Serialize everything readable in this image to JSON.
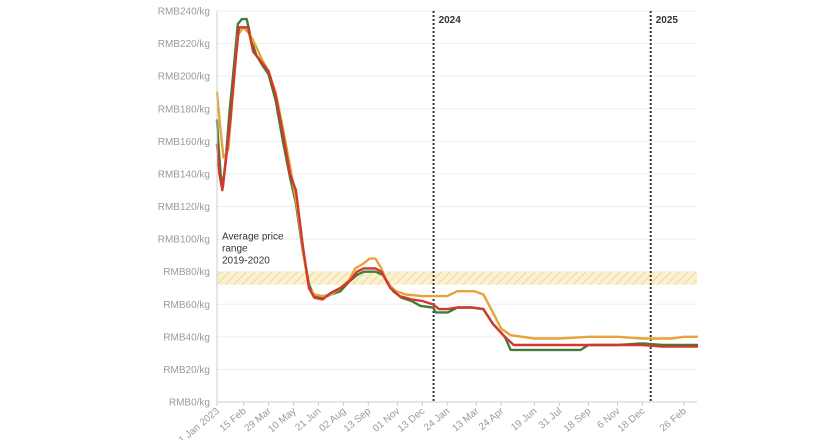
{
  "chart_data": {
    "type": "line",
    "title": "",
    "xlabel": "",
    "ylabel": "",
    "ylim": [
      0,
      240
    ],
    "grid": true,
    "y_ticks": [
      0,
      20,
      40,
      60,
      80,
      100,
      120,
      140,
      160,
      180,
      200,
      220,
      240
    ],
    "y_tick_prefix": "RMB",
    "y_tick_suffix": "/kg",
    "x_range": [
      "2023-01-01",
      "2025-03-20"
    ],
    "x_ticks": [
      {
        "date": "2023-01-01",
        "label": "1 Jan 2023"
      },
      {
        "date": "2023-02-15",
        "label": "15 Feb"
      },
      {
        "date": "2023-03-29",
        "label": "29 Mar"
      },
      {
        "date": "2023-05-10",
        "label": "10 May"
      },
      {
        "date": "2023-06-21",
        "label": "21 Jun"
      },
      {
        "date": "2023-08-02",
        "label": "02 Aug"
      },
      {
        "date": "2023-09-13",
        "label": "13 Sep"
      },
      {
        "date": "2023-11-01",
        "label": "01 Nov"
      },
      {
        "date": "2023-12-13",
        "label": "13 Dec"
      },
      {
        "date": "2024-01-24",
        "label": "24 Jan"
      },
      {
        "date": "2024-03-13",
        "label": "13 Mar"
      },
      {
        "date": "2024-04-24",
        "label": "24 Apr"
      },
      {
        "date": "2024-06-19",
        "label": "19 Jun"
      },
      {
        "date": "2024-07-31",
        "label": "31 Jul"
      },
      {
        "date": "2024-09-18",
        "label": "18 Sep"
      },
      {
        "date": "2024-11-06",
        "label": "6 Nov"
      },
      {
        "date": "2024-12-18",
        "label": "18 Dec"
      },
      {
        "date": "2025-02-26",
        "label": "26 Feb"
      }
    ],
    "year_markers": [
      {
        "date": "2024-01-01",
        "label": "2024"
      },
      {
        "date": "2025-01-01",
        "label": "2025"
      }
    ],
    "band": {
      "y0": 72,
      "y1": 80,
      "label": "Average price range 2019-2020",
      "color": "#f0d27a"
    },
    "series": [
      {
        "color": "#3e7d3a",
        "points": [
          [
            "2023-01-01",
            173
          ],
          [
            "2023-01-03",
            160
          ],
          [
            "2023-01-07",
            140
          ],
          [
            "2023-01-11",
            132
          ],
          [
            "2023-01-16",
            150
          ],
          [
            "2023-01-22",
            178
          ],
          [
            "2023-01-28",
            200
          ],
          [
            "2023-02-05",
            232
          ],
          [
            "2023-02-12",
            235
          ],
          [
            "2023-02-20",
            235
          ],
          [
            "2023-02-28",
            222
          ],
          [
            "2023-03-08",
            213
          ],
          [
            "2023-03-18",
            207
          ],
          [
            "2023-03-29",
            201
          ],
          [
            "2023-04-10",
            185
          ],
          [
            "2023-04-22",
            160
          ],
          [
            "2023-05-04",
            138
          ],
          [
            "2023-05-14",
            122
          ],
          [
            "2023-05-26",
            92
          ],
          [
            "2023-06-05",
            72
          ],
          [
            "2023-06-14",
            65
          ],
          [
            "2023-06-28",
            64
          ],
          [
            "2023-07-12",
            66
          ],
          [
            "2023-07-28",
            68
          ],
          [
            "2023-08-12",
            74
          ],
          [
            "2023-08-25",
            78
          ],
          [
            "2023-09-05",
            80
          ],
          [
            "2023-09-25",
            80
          ],
          [
            "2023-10-08",
            78
          ],
          [
            "2023-10-25",
            68
          ],
          [
            "2023-11-08",
            64
          ],
          [
            "2023-11-25",
            62
          ],
          [
            "2023-12-10",
            59
          ],
          [
            "2023-12-31",
            58
          ],
          [
            "2024-01-05",
            55
          ],
          [
            "2024-01-25",
            55
          ],
          [
            "2024-02-10",
            58
          ],
          [
            "2024-03-05",
            58
          ],
          [
            "2024-03-25",
            57
          ],
          [
            "2024-04-10",
            48
          ],
          [
            "2024-04-30",
            40
          ],
          [
            "2024-05-10",
            32
          ],
          [
            "2024-06-19",
            32
          ],
          [
            "2024-07-31",
            32
          ],
          [
            "2024-09-05",
            32
          ],
          [
            "2024-09-18",
            35
          ],
          [
            "2024-11-06",
            35
          ],
          [
            "2024-12-18",
            36
          ],
          [
            "2025-01-20",
            35
          ],
          [
            "2025-02-26",
            35
          ],
          [
            "2025-03-20",
            35
          ]
        ]
      },
      {
        "color": "#e8a23a",
        "points": [
          [
            "2023-01-01",
            190
          ],
          [
            "2023-01-06",
            170
          ],
          [
            "2023-01-12",
            150
          ],
          [
            "2023-01-20",
            155
          ],
          [
            "2023-01-28",
            190
          ],
          [
            "2023-02-05",
            225
          ],
          [
            "2023-02-14",
            230
          ],
          [
            "2023-02-25",
            226
          ],
          [
            "2023-03-08",
            218
          ],
          [
            "2023-03-18",
            210
          ],
          [
            "2023-03-29",
            203
          ],
          [
            "2023-04-10",
            190
          ],
          [
            "2023-04-22",
            168
          ],
          [
            "2023-05-04",
            145
          ],
          [
            "2023-05-16",
            120
          ],
          [
            "2023-05-28",
            88
          ],
          [
            "2023-06-05",
            70
          ],
          [
            "2023-06-14",
            66
          ],
          [
            "2023-06-28",
            65
          ],
          [
            "2023-07-12",
            66
          ],
          [
            "2023-07-28",
            70
          ],
          [
            "2023-08-12",
            75
          ],
          [
            "2023-08-22",
            82
          ],
          [
            "2023-09-05",
            85
          ],
          [
            "2023-09-15",
            88
          ],
          [
            "2023-09-25",
            88
          ],
          [
            "2023-10-05",
            82
          ],
          [
            "2023-10-15",
            73
          ],
          [
            "2023-10-30",
            68
          ],
          [
            "2023-11-15",
            66
          ],
          [
            "2023-12-13",
            65
          ],
          [
            "2024-01-24",
            65
          ],
          [
            "2024-02-10",
            68
          ],
          [
            "2024-03-10",
            68
          ],
          [
            "2024-03-25",
            66
          ],
          [
            "2024-04-10",
            55
          ],
          [
            "2024-04-24",
            45
          ],
          [
            "2024-05-10",
            41
          ],
          [
            "2024-06-19",
            39
          ],
          [
            "2024-07-31",
            39
          ],
          [
            "2024-09-18",
            40
          ],
          [
            "2024-11-06",
            40
          ],
          [
            "2024-12-18",
            39
          ],
          [
            "2025-01-20",
            39
          ],
          [
            "2025-02-05",
            39
          ],
          [
            "2025-02-26",
            40
          ],
          [
            "2025-03-20",
            40
          ]
        ]
      },
      {
        "color": "#d0392b",
        "points": [
          [
            "2023-01-01",
            158
          ],
          [
            "2023-01-05",
            140
          ],
          [
            "2023-01-10",
            130
          ],
          [
            "2023-01-16",
            148
          ],
          [
            "2023-01-24",
            175
          ],
          [
            "2023-01-31",
            205
          ],
          [
            "2023-02-07",
            230
          ],
          [
            "2023-02-14",
            230
          ],
          [
            "2023-02-22",
            230
          ],
          [
            "2023-03-03",
            215
          ],
          [
            "2023-03-14",
            210
          ],
          [
            "2023-03-29",
            203
          ],
          [
            "2023-04-10",
            188
          ],
          [
            "2023-04-22",
            165
          ],
          [
            "2023-05-04",
            140
          ],
          [
            "2023-05-14",
            130
          ],
          [
            "2023-05-26",
            95
          ],
          [
            "2023-06-05",
            70
          ],
          [
            "2023-06-14",
            64
          ],
          [
            "2023-06-28",
            63
          ],
          [
            "2023-07-12",
            67
          ],
          [
            "2023-07-28",
            70
          ],
          [
            "2023-08-12",
            74
          ],
          [
            "2023-08-25",
            80
          ],
          [
            "2023-09-05",
            82
          ],
          [
            "2023-09-25",
            82
          ],
          [
            "2023-10-05",
            80
          ],
          [
            "2023-10-20",
            70
          ],
          [
            "2023-11-05",
            65
          ],
          [
            "2023-11-25",
            63
          ],
          [
            "2023-12-13",
            62
          ],
          [
            "2023-12-31",
            60
          ],
          [
            "2024-01-10",
            57
          ],
          [
            "2024-01-25",
            57
          ],
          [
            "2024-02-10",
            58
          ],
          [
            "2024-03-05",
            58
          ],
          [
            "2024-03-25",
            57
          ],
          [
            "2024-04-10",
            48
          ],
          [
            "2024-04-30",
            40
          ],
          [
            "2024-05-15",
            35
          ],
          [
            "2024-06-19",
            35
          ],
          [
            "2024-07-31",
            35
          ],
          [
            "2024-09-18",
            35
          ],
          [
            "2024-11-06",
            35
          ],
          [
            "2024-12-18",
            35
          ],
          [
            "2025-01-20",
            34
          ],
          [
            "2025-02-26",
            34
          ],
          [
            "2025-03-20",
            34
          ]
        ]
      }
    ]
  }
}
